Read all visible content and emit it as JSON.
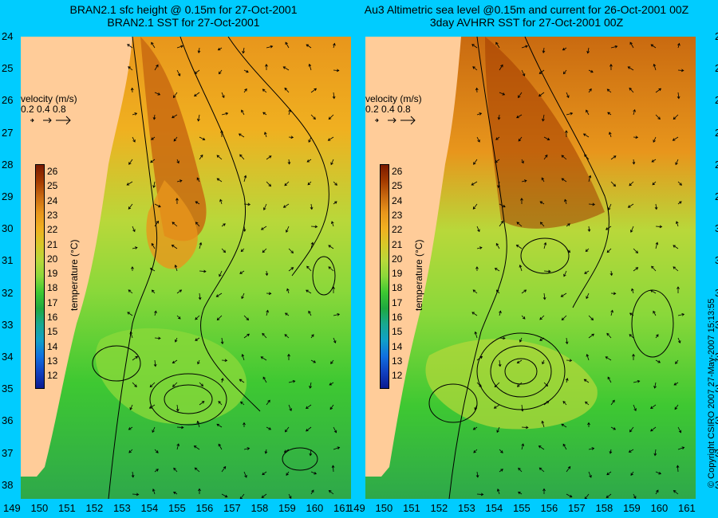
{
  "panels": [
    {
      "id": "left",
      "title_line1": "BRAN2.1 sfc height @ 0.15m for 27-Oct-2001",
      "title_line2": "BRAN2.1 SST for 27-Oct-2001"
    },
    {
      "id": "right",
      "title_line1": "Au3 Altimetric sea level  @0.15m and current for 26-Oct-2001 00Z",
      "title_line2": "3day AVHRR SST for 27-Oct-2001 00Z"
    }
  ],
  "axes": {
    "lat_ticks": [
      "24",
      "25",
      "26",
      "27",
      "28",
      "29",
      "30",
      "31",
      "32",
      "33",
      "34",
      "35",
      "36",
      "37",
      "38"
    ],
    "lon_ticks": [
      "149",
      "150",
      "151",
      "152",
      "153",
      "154",
      "155",
      "156",
      "157",
      "158",
      "159",
      "160",
      "161"
    ]
  },
  "velocity_legend": {
    "title": "velocity (m/s)",
    "ticks": "0.2 0.4 0.8"
  },
  "colorbar": {
    "label": "temperature (°C)",
    "ticks": [
      "26",
      "25",
      "24",
      "23",
      "22",
      "21",
      "20",
      "19",
      "18",
      "17",
      "16",
      "15",
      "14",
      "13",
      "12"
    ],
    "colors": [
      "#7a1a00",
      "#a33a00",
      "#c96a10",
      "#e8961c",
      "#f0b020",
      "#d8c828",
      "#b8d83a",
      "#8ad83a",
      "#3ec832",
      "#1ea840",
      "#18a890",
      "#10a0c8",
      "#1070e0",
      "#1040c0",
      "#0a1a90"
    ]
  },
  "copyright": "© Copyright CSIRO 2007    27-May-2007 15:13:55",
  "colors": {
    "background": "#00ccff",
    "land": "#ffcc99",
    "warm_core": "#d0801a",
    "mid": "#8ad83a",
    "cool": "#2ea84a"
  },
  "chart_data": {
    "type": "heatmap",
    "x_range": [
      149,
      161
    ],
    "y_range": [
      -38.5,
      -24
    ],
    "colorbar_range": [
      12,
      26
    ]
  }
}
